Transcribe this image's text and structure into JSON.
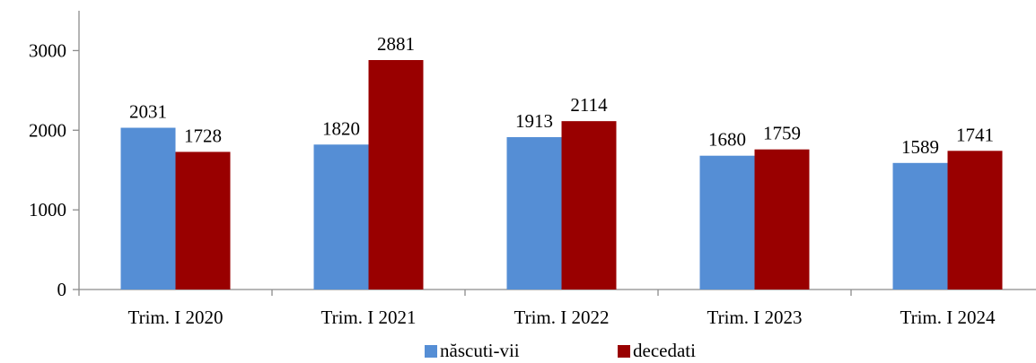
{
  "chart_data": {
    "type": "bar",
    "title": "",
    "xlabel": "",
    "ylabel": "",
    "categories": [
      "Trim. I 2020",
      "Trim. I 2021",
      "Trim. I 2022",
      "Trim. I 2023",
      "Trim. I 2024"
    ],
    "series": [
      {
        "name": "născuti-vii",
        "color": "#558ED5",
        "values": [
          2031,
          1820,
          1913,
          1680,
          1589
        ]
      },
      {
        "name": "decedati",
        "color": "#990000",
        "values": [
          1728,
          2881,
          2114,
          1759,
          1741
        ]
      }
    ],
    "ylim": [
      0,
      3500
    ],
    "yticks": [
      0,
      1000,
      2000,
      3000
    ],
    "grid": false,
    "legend_position": "bottom",
    "data_labels": true
  }
}
